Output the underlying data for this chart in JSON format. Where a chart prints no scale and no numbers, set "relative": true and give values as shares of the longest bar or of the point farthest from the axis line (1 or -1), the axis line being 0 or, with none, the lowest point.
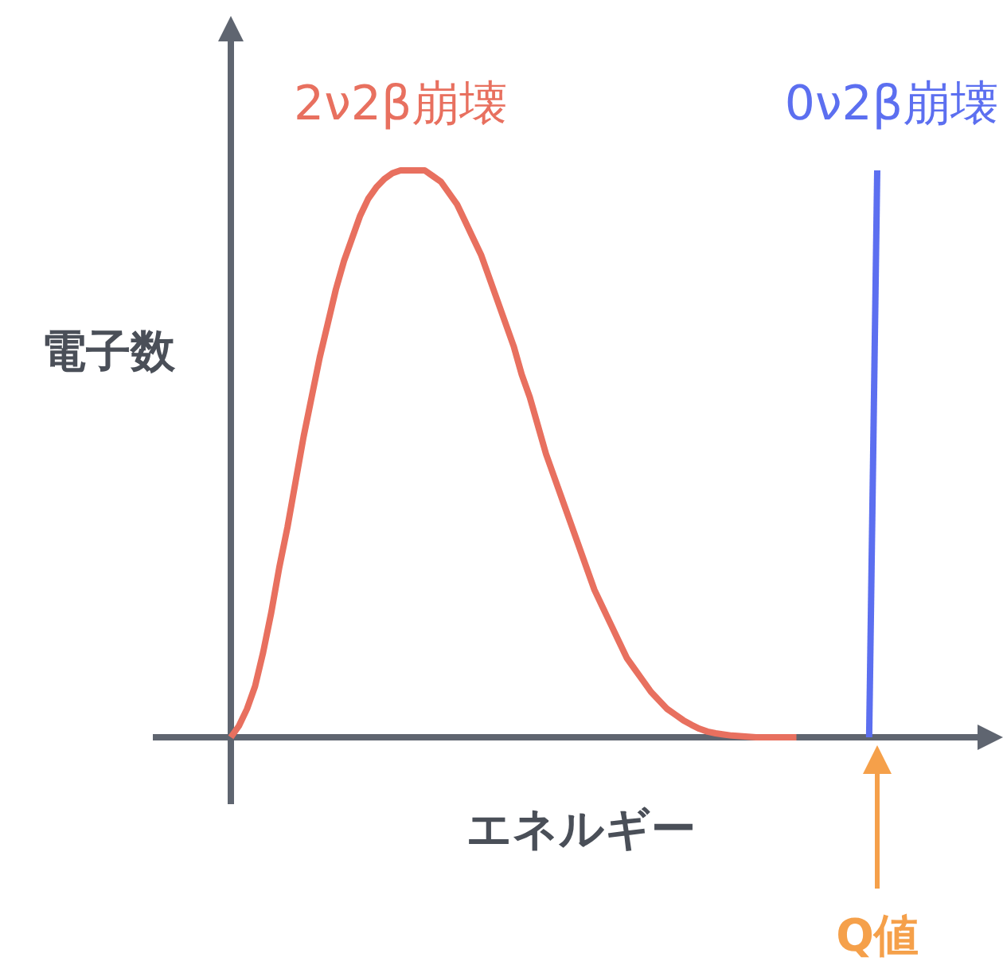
{
  "chart_data": {
    "type": "line",
    "relative": true,
    "xlabel": "エネルギー",
    "ylabel": "電子数",
    "categories": [
      null,
      null,
      null,
      null,
      null,
      null,
      null,
      null,
      null,
      null,
      null,
      null,
      null,
      null,
      null,
      null,
      null,
      null,
      null,
      null,
      null,
      null,
      null,
      null,
      null,
      null,
      null,
      null,
      null,
      null,
      null,
      null,
      null,
      null,
      null,
      null,
      null,
      null,
      null,
      null,
      null,
      null,
      null,
      null,
      null,
      null,
      null,
      null,
      null,
      null,
      null,
      null,
      null,
      null,
      null,
      null,
      null,
      null,
      null,
      null,
      null,
      null,
      null,
      null,
      null,
      null,
      null,
      null,
      null,
      null,
      null,
      null,
      null,
      null,
      null,
      null,
      null,
      null,
      null,
      null,
      null
    ],
    "series": [
      {
        "name": "2ν2β崩壊",
        "color": "#e8705f",
        "values": [
          0,
          0.02,
          0.05,
          0.09,
          0.15,
          0.22,
          0.3,
          0.37,
          0.45,
          0.53,
          0.6,
          0.67,
          0.73,
          0.79,
          0.84,
          0.88,
          0.92,
          0.95,
          0.97,
          0.985,
          0.995,
          1,
          1,
          1,
          1,
          0.99,
          0.98,
          0.96,
          0.94,
          0.91,
          0.88,
          0.85,
          0.81,
          0.77,
          0.73,
          0.69,
          0.64,
          0.6,
          0.55,
          0.5,
          0.46,
          0.42,
          0.38,
          0.34,
          0.3,
          0.26,
          0.23,
          0.2,
          0.17,
          0.14,
          0.12,
          0.1,
          0.08,
          0.065,
          0.05,
          0.04,
          0.03,
          0.022,
          0.015,
          0.01,
          0.007,
          0.005,
          0.003,
          0.002,
          0.001,
          0,
          0,
          0,
          0,
          0,
          0,
          null,
          null,
          null,
          null,
          null,
          null,
          null,
          null,
          null,
          null
        ]
      },
      {
        "name": "0ν2β崩壊",
        "color": "#5c6ff0",
        "values": [
          null,
          null,
          null,
          null,
          null,
          null,
          null,
          null,
          null,
          null,
          null,
          null,
          null,
          null,
          null,
          null,
          null,
          null,
          null,
          null,
          null,
          null,
          null,
          null,
          null,
          null,
          null,
          null,
          null,
          null,
          null,
          null,
          null,
          null,
          null,
          null,
          null,
          null,
          null,
          null,
          null,
          null,
          null,
          null,
          null,
          null,
          null,
          null,
          null,
          null,
          null,
          null,
          null,
          null,
          null,
          null,
          null,
          null,
          null,
          null,
          null,
          null,
          null,
          null,
          null,
          null,
          null,
          null,
          null,
          null,
          null,
          null,
          null,
          null,
          null,
          null,
          null,
          null,
          null,
          0,
          1
        ]
      }
    ],
    "annotations": [
      "Q値"
    ]
  }
}
